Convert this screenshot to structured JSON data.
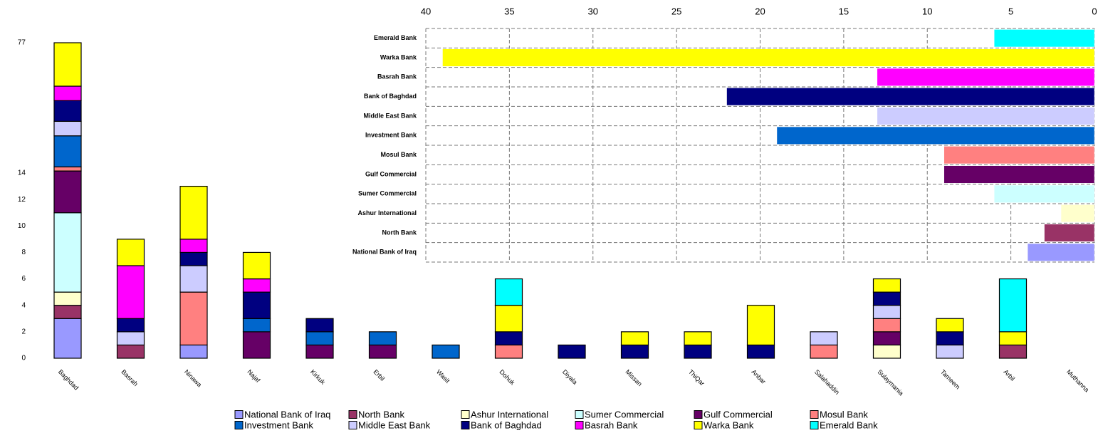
{
  "chart_data": [
    {
      "type": "bar",
      "stacked": true,
      "categories": [
        "Baghdad",
        "Basrah",
        "Ninawa",
        "Najaf",
        "Kirkuk",
        "Erbil",
        "Wasit",
        "Dohuk",
        "Diyala",
        "Missan",
        "ThiQar",
        "Anbar",
        "Salahaddin",
        "Sulaymania",
        "Tameem",
        "Arbil",
        "Muthanna"
      ],
      "ylim": [
        0,
        77
      ],
      "yticks": [
        0,
        2,
        4,
        6,
        8,
        10,
        12,
        14,
        77
      ],
      "series": [
        {
          "name": "National Bank of Iraq",
          "color": "#9999ff",
          "values": [
            3,
            0,
            1,
            0,
            0,
            0,
            0,
            0,
            0,
            0,
            0,
            0,
            0,
            0,
            0,
            0,
            0
          ]
        },
        {
          "name": "North Bank",
          "color": "#993366",
          "values": [
            1,
            1,
            0,
            0,
            0,
            0,
            0,
            0,
            0,
            0,
            0,
            0,
            0,
            0,
            0,
            1,
            0
          ]
        },
        {
          "name": "Ashur International",
          "color": "#ffffcc",
          "values": [
            1,
            0,
            0,
            0,
            0,
            0,
            0,
            0,
            0,
            0,
            0,
            0,
            0,
            1,
            0,
            0,
            0
          ]
        },
        {
          "name": "Sumer Commercial",
          "color": "#ccffff",
          "values": [
            6,
            0,
            0,
            0,
            0,
            0,
            0,
            0,
            0,
            0,
            0,
            0,
            0,
            0,
            0,
            0,
            0
          ]
        },
        {
          "name": "Gulf Commercial",
          "color": "#660066",
          "values": [
            4,
            0,
            0,
            2,
            1,
            1,
            0,
            0,
            0,
            0,
            0,
            0,
            0,
            1,
            0,
            0,
            0
          ]
        },
        {
          "name": "Mosul Bank",
          "color": "#ff8080",
          "values": [
            2,
            0,
            4,
            0,
            0,
            0,
            0,
            1,
            0,
            0,
            0,
            0,
            1,
            1,
            0,
            0,
            0
          ]
        },
        {
          "name": "Investment Bank",
          "color": "#0066cc",
          "values": [
            15,
            0,
            0,
            1,
            1,
            1,
            1,
            0,
            0,
            0,
            0,
            0,
            0,
            0,
            0,
            0,
            0
          ]
        },
        {
          "name": "Middle East Bank",
          "color": "#ccccff",
          "values": [
            7,
            1,
            2,
            0,
            0,
            0,
            0,
            0,
            0,
            0,
            0,
            0,
            1,
            1,
            1,
            0,
            0
          ]
        },
        {
          "name": "Bank of Baghdad",
          "color": "#000080",
          "values": [
            10,
            1,
            1,
            2,
            1,
            0,
            0,
            1,
            1,
            1,
            1,
            1,
            0,
            1,
            1,
            0,
            0
          ]
        },
        {
          "name": "Basrah Bank",
          "color": "#ff00ff",
          "values": [
            7,
            4,
            1,
            1,
            0,
            0,
            0,
            0,
            0,
            0,
            0,
            0,
            0,
            0,
            0,
            0,
            0
          ]
        },
        {
          "name": "Warka Bank",
          "color": "#ffff00",
          "values": [
            21,
            2,
            4,
            2,
            0,
            0,
            0,
            2,
            0,
            1,
            1,
            3,
            0,
            1,
            1,
            1,
            0
          ]
        },
        {
          "name": "Emerald Bank",
          "color": "#00ffff",
          "values": [
            0,
            0,
            0,
            0,
            0,
            0,
            0,
            2,
            0,
            0,
            0,
            0,
            0,
            0,
            0,
            4,
            0
          ]
        }
      ]
    },
    {
      "type": "barh",
      "categories": [
        "Emerald Bank",
        "Warka Bank",
        "Basrah Bank",
        "Bank of Baghdad",
        "Middle East Bank",
        "Investment Bank",
        "Mosul Bank",
        "Gulf Commercial",
        "Sumer Commercial",
        "Ashur International",
        "North Bank",
        "National Bank of Iraq"
      ],
      "values": [
        6,
        39,
        13,
        22,
        13,
        19,
        9,
        9,
        6,
        2,
        3,
        4
      ],
      "colors": [
        "#00ffff",
        "#ffff00",
        "#ff00ff",
        "#000080",
        "#ccccff",
        "#0066cc",
        "#ff8080",
        "#660066",
        "#ccffff",
        "#ffffcc",
        "#993366",
        "#9999ff"
      ],
      "xlim": [
        40,
        0
      ],
      "xticks": [
        40,
        35,
        30,
        25,
        20,
        15,
        10,
        5,
        0
      ],
      "grid": true
    }
  ]
}
